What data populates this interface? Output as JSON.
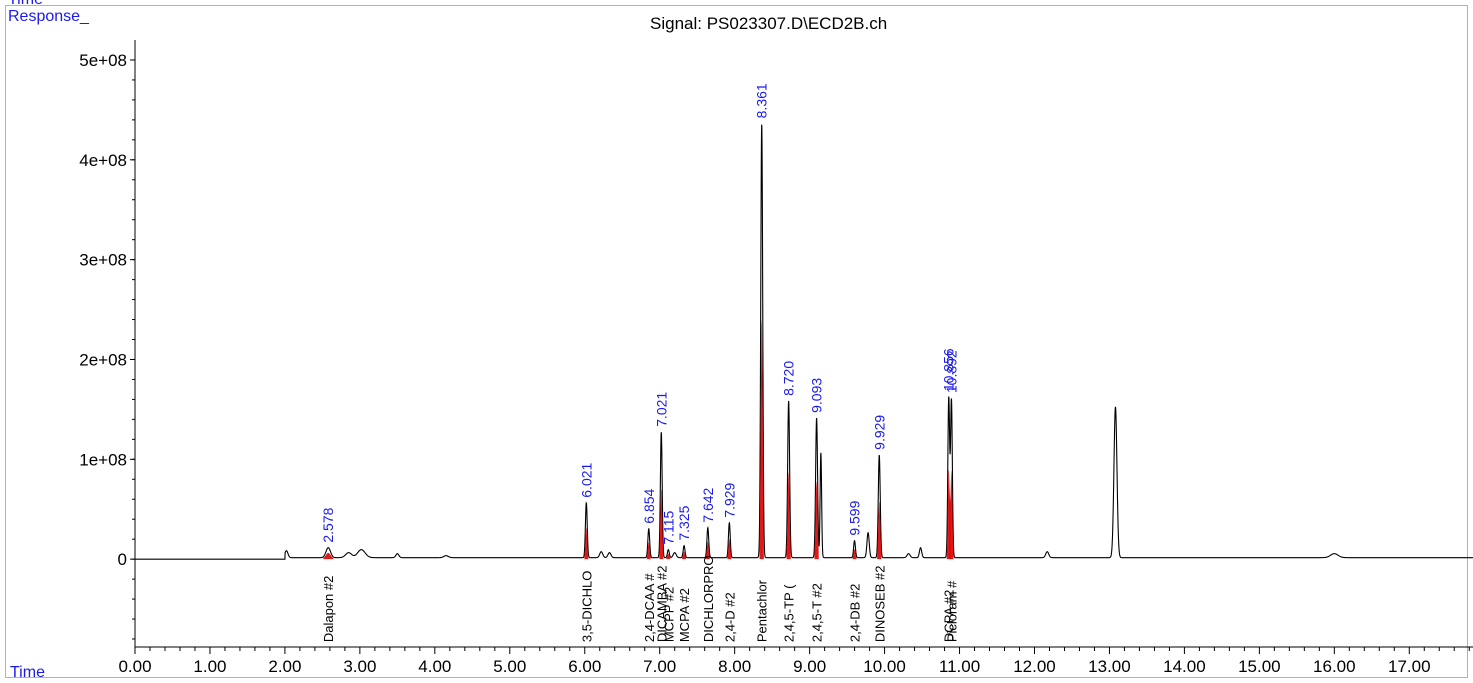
{
  "header": {
    "time_top": "Time",
    "response_label": "Response_",
    "time_label": "Time",
    "signal_title": "Signal: PS023307.D\\ECD2B.ch"
  },
  "colors": {
    "trace": "#000000",
    "label_blue": "#1a1aee",
    "integration_red": "#e00000",
    "frame_green": "#7cd97c"
  },
  "chart_data": {
    "type": "line",
    "title": "Signal: PS023307.D\\ECD2B.ch",
    "xlabel": "Time",
    "ylabel": "Response_",
    "xlim": [
      0.0,
      17.85
    ],
    "ylim": [
      -88000000.0,
      520000000.0
    ],
    "x_ticks": [
      "0.00",
      "1.00",
      "2.00",
      "3.00",
      "4.00",
      "5.00",
      "6.00",
      "7.00",
      "8.00",
      "9.00",
      "10.00",
      "11.00",
      "12.00",
      "13.00",
      "14.00",
      "15.00",
      "16.00",
      "17.00"
    ],
    "y_ticks": [
      {
        "value": 0,
        "label": "0"
      },
      {
        "value": 100000000,
        "label": "1e+08"
      },
      {
        "value": 200000000,
        "label": "2e+08"
      },
      {
        "value": 300000000,
        "label": "3e+08"
      },
      {
        "value": 400000000,
        "label": "4e+08"
      },
      {
        "value": 500000000,
        "label": "5e+08"
      }
    ],
    "peaks": [
      {
        "rt": 2.02,
        "height": 7000000,
        "width": 0.02,
        "labeled": false
      },
      {
        "rt": 2.578,
        "height": 10000000,
        "width": 0.03,
        "label": "2.578",
        "compound": "Dalapon #2"
      },
      {
        "rt": 2.85,
        "height": 5000000,
        "width": 0.04,
        "labeled": false
      },
      {
        "rt": 3.02,
        "height": 8000000,
        "width": 0.05,
        "labeled": false
      },
      {
        "rt": 3.5,
        "height": 4000000,
        "width": 0.02,
        "labeled": false
      },
      {
        "rt": 4.15,
        "height": 2000000,
        "width": 0.03,
        "labeled": false
      },
      {
        "rt": 6.021,
        "height": 55000000,
        "width": 0.012,
        "label": "6.021",
        "compound": "3,5-DICHLO"
      },
      {
        "rt": 6.22,
        "height": 6000000,
        "width": 0.02,
        "labeled": false
      },
      {
        "rt": 6.33,
        "height": 5000000,
        "width": 0.02,
        "labeled": false
      },
      {
        "rt": 6.854,
        "height": 29000000,
        "width": 0.012,
        "label": "6.854",
        "compound": "2,4-DCAA #"
      },
      {
        "rt": 7.021,
        "height": 126000000,
        "width": 0.012,
        "label": "7.021",
        "compound": "DICAMBA #2"
      },
      {
        "rt": 7.115,
        "height": 8000000,
        "width": 0.012,
        "label": "7.115",
        "compound": "MCPP #2"
      },
      {
        "rt": 7.2,
        "height": 5000000,
        "width": 0.02,
        "labeled": false
      },
      {
        "rt": 7.325,
        "height": 12000000,
        "width": 0.012,
        "label": "7.325",
        "compound": "MCPA #2"
      },
      {
        "rt": 7.642,
        "height": 30000000,
        "width": 0.012,
        "label": "7.642",
        "compound": "DICHLORPRO"
      },
      {
        "rt": 7.929,
        "height": 35000000,
        "width": 0.012,
        "label": "7.929",
        "compound": "2,4-D #2"
      },
      {
        "rt": 8.361,
        "height": 435000000,
        "width": 0.013,
        "label": "8.361",
        "compound": "Pentachlor"
      },
      {
        "rt": 8.72,
        "height": 157000000,
        "width": 0.013,
        "label": "8.720",
        "compound": "2,4,5-TP ("
      },
      {
        "rt": 9.093,
        "height": 140000000,
        "width": 0.013,
        "label": "9.093",
        "compound": "2,4,5-T #2"
      },
      {
        "rt": 9.15,
        "height": 105000000,
        "width": 0.01,
        "labeled": false
      },
      {
        "rt": 9.599,
        "height": 17000000,
        "width": 0.012,
        "label": "9.599",
        "compound": "2,4-DB #2"
      },
      {
        "rt": 9.78,
        "height": 25000000,
        "width": 0.015,
        "labeled": false
      },
      {
        "rt": 9.929,
        "height": 103000000,
        "width": 0.013,
        "label": "9.929",
        "compound": "DINOSEB #2"
      },
      {
        "rt": 10.32,
        "height": 4000000,
        "width": 0.02,
        "labeled": false
      },
      {
        "rt": 10.48,
        "height": 10000000,
        "width": 0.015,
        "labeled": false
      },
      {
        "rt": 10.856,
        "height": 160000000,
        "width": 0.012,
        "label": "10.856",
        "compound": "DCPA #2"
      },
      {
        "rt": 10.892,
        "height": 158000000,
        "width": 0.012,
        "label": "10.892",
        "compound": "Picloram #"
      },
      {
        "rt": 12.17,
        "height": 6000000,
        "width": 0.02,
        "labeled": false
      },
      {
        "rt": 13.08,
        "height": 151000000,
        "width": 0.02,
        "labeled": false
      },
      {
        "rt": 16.0,
        "height": 4000000,
        "width": 0.05,
        "labeled": false
      }
    ]
  }
}
